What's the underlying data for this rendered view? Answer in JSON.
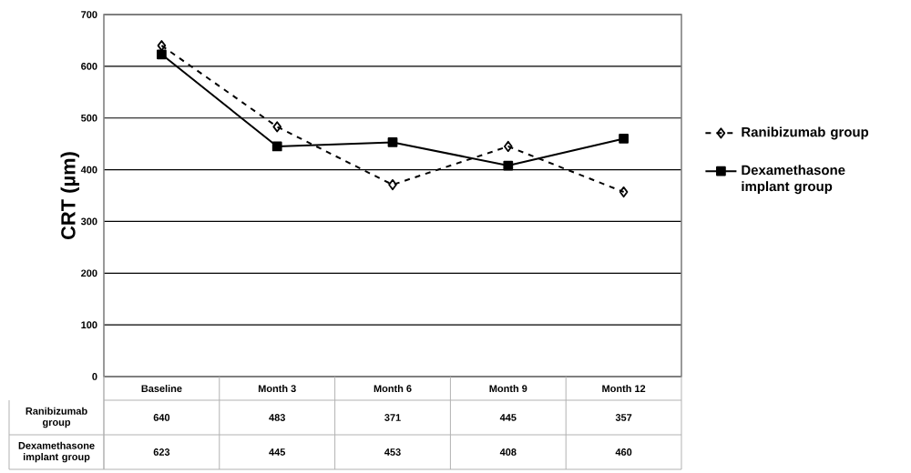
{
  "chart_data": {
    "type": "line",
    "ylabel": "CRT (µm)",
    "categories": [
      "Baseline",
      "Month 3",
      "Month 6",
      "Month 9",
      "Month 12"
    ],
    "series": [
      {
        "name": "Ranibizumab group",
        "color": "#000000",
        "marker": "diamond",
        "line_style": "dashed",
        "values": [
          640,
          483,
          371,
          445,
          357
        ]
      },
      {
        "name": "Dexamethasone implant group",
        "color": "#000000",
        "marker": "square",
        "line_style": "solid",
        "values": [
          623,
          445,
          453,
          408,
          460
        ]
      }
    ],
    "ylim": [
      0,
      700
    ],
    "yticks": [
      0,
      100,
      200,
      300,
      400,
      500,
      600,
      700
    ],
    "grid": "y",
    "legend": "right",
    "data_labels": true
  }
}
